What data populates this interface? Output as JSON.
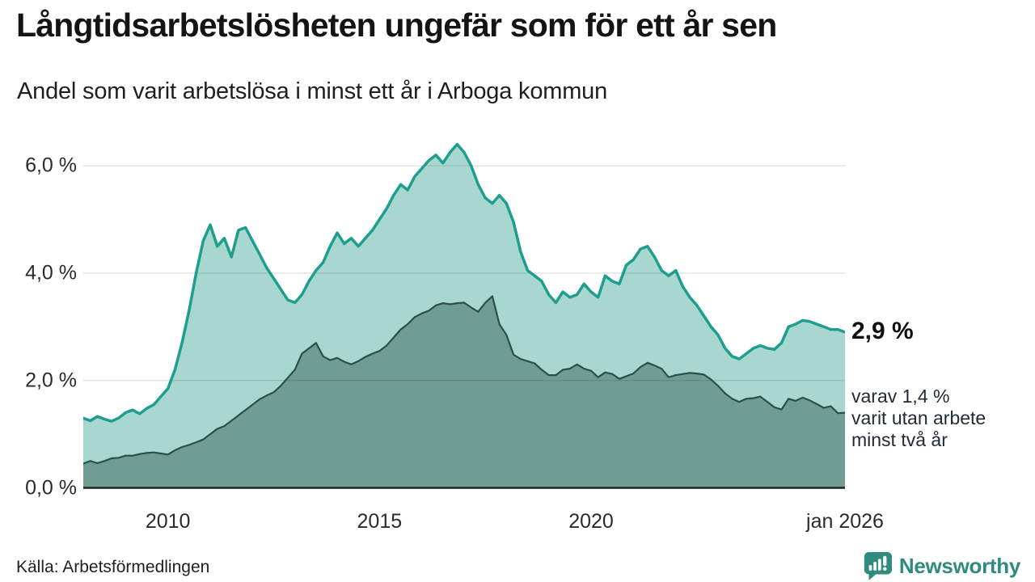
{
  "header": {
    "title": "Långtidsarbetslösheten ungefär som för ett år sen",
    "subtitle": "Andel som varit arbetslösa i minst ett år i Arboga kommun"
  },
  "annotations": {
    "total_end_label": "2,9 %",
    "secondary_lines": [
      "varav 1,4 %",
      "varit utan arbete",
      "minst två år"
    ]
  },
  "footer": {
    "source": "Källa: Arbetsförmedlingen",
    "brand": "Newsworthy"
  },
  "colors": {
    "total_line": "#1d9e8f",
    "total_fill": "#a7d7cf",
    "two_year_line": "#2c5049",
    "two_year_fill": "#6f9c93",
    "gridline": "rgba(40,40,40,0.15)",
    "axis_line": "#222222",
    "brand_teal": "#2e8b7e",
    "text": "#141414"
  },
  "chart_data": {
    "type": "area",
    "title": "Långtidsarbetslösheten ungefär som för ett år sen",
    "subtitle": "Andel som varit arbetslösa i minst ett år i Arboga kommun",
    "unit": "%",
    "grid": true,
    "legend_position": "none",
    "x_axis": {
      "range": [
        2008,
        2026.0
      ],
      "ticks": [
        {
          "x": 2010,
          "label": "2010"
        },
        {
          "x": 2015,
          "label": "2015"
        },
        {
          "x": 2020,
          "label": "2020"
        },
        {
          "x": 2026.0,
          "label": "jan 2026"
        }
      ]
    },
    "y_axis": {
      "range": [
        0,
        6.5
      ],
      "ticks": [
        {
          "v": 0,
          "label": "0,0 %"
        },
        {
          "v": 2,
          "label": "2,0 %"
        },
        {
          "v": 4,
          "label": "4,0 %"
        },
        {
          "v": 6,
          "label": "6,0 %"
        }
      ]
    },
    "series": [
      {
        "name": "Arbetslösa minst ett år (andel)",
        "end_label": "2,9 %",
        "end_value": 2.9,
        "line_color": "#1d9e8f",
        "fill_color": "#a7d7cf",
        "line_width": 3.5,
        "start_year": 2008,
        "step_years": 0.1666667,
        "values": [
          1.3,
          1.25,
          1.33,
          1.28,
          1.24,
          1.3,
          1.4,
          1.45,
          1.38,
          1.48,
          1.55,
          1.7,
          1.85,
          2.2,
          2.7,
          3.3,
          4.0,
          4.6,
          4.9,
          4.5,
          4.65,
          4.3,
          4.8,
          4.85,
          4.6,
          4.35,
          4.1,
          3.9,
          3.7,
          3.5,
          3.45,
          3.6,
          3.85,
          4.05,
          4.2,
          4.5,
          4.75,
          4.55,
          4.65,
          4.5,
          4.65,
          4.8,
          5.0,
          5.2,
          5.45,
          5.65,
          5.55,
          5.8,
          5.95,
          6.1,
          6.2,
          6.05,
          6.25,
          6.4,
          6.25,
          6.0,
          5.65,
          5.4,
          5.3,
          5.45,
          5.3,
          4.95,
          4.4,
          4.05,
          3.95,
          3.85,
          3.6,
          3.45,
          3.65,
          3.55,
          3.6,
          3.8,
          3.65,
          3.55,
          3.95,
          3.85,
          3.8,
          4.15,
          4.25,
          4.45,
          4.5,
          4.3,
          4.05,
          3.95,
          4.05,
          3.75,
          3.55,
          3.4,
          3.2,
          3.0,
          2.85,
          2.6,
          2.45,
          2.4,
          2.5,
          2.6,
          2.65,
          2.6,
          2.58,
          2.7,
          3.0,
          3.05,
          3.12,
          3.1,
          3.05,
          3.0,
          2.95,
          2.95,
          2.9
        ]
      },
      {
        "name": "Utan arbete minst två år (andel)",
        "end_label": "1,4 %",
        "end_value": 1.4,
        "line_color": "#2c5049",
        "fill_color": "#6f9c93",
        "line_width": 2.2,
        "start_year": 2008,
        "step_years": 0.1666667,
        "values": [
          0.45,
          0.5,
          0.46,
          0.5,
          0.55,
          0.56,
          0.6,
          0.6,
          0.63,
          0.65,
          0.66,
          0.64,
          0.62,
          0.7,
          0.76,
          0.8,
          0.85,
          0.9,
          1.0,
          1.1,
          1.15,
          1.25,
          1.35,
          1.45,
          1.55,
          1.65,
          1.72,
          1.78,
          1.9,
          2.05,
          2.2,
          2.5,
          2.6,
          2.7,
          2.45,
          2.38,
          2.42,
          2.35,
          2.3,
          2.36,
          2.44,
          2.5,
          2.55,
          2.65,
          2.8,
          2.95,
          3.05,
          3.18,
          3.25,
          3.3,
          3.4,
          3.44,
          3.42,
          3.44,
          3.45,
          3.36,
          3.28,
          3.45,
          3.57,
          3.05,
          2.85,
          2.48,
          2.4,
          2.36,
          2.32,
          2.2,
          2.1,
          2.1,
          2.2,
          2.22,
          2.3,
          2.22,
          2.18,
          2.06,
          2.15,
          2.12,
          2.03,
          2.08,
          2.13,
          2.25,
          2.33,
          2.28,
          2.22,
          2.06,
          2.1,
          2.12,
          2.14,
          2.13,
          2.11,
          2.02,
          1.9,
          1.76,
          1.66,
          1.6,
          1.66,
          1.67,
          1.7,
          1.6,
          1.5,
          1.46,
          1.66,
          1.62,
          1.68,
          1.63,
          1.56,
          1.49,
          1.52,
          1.39,
          1.4
        ]
      }
    ]
  }
}
